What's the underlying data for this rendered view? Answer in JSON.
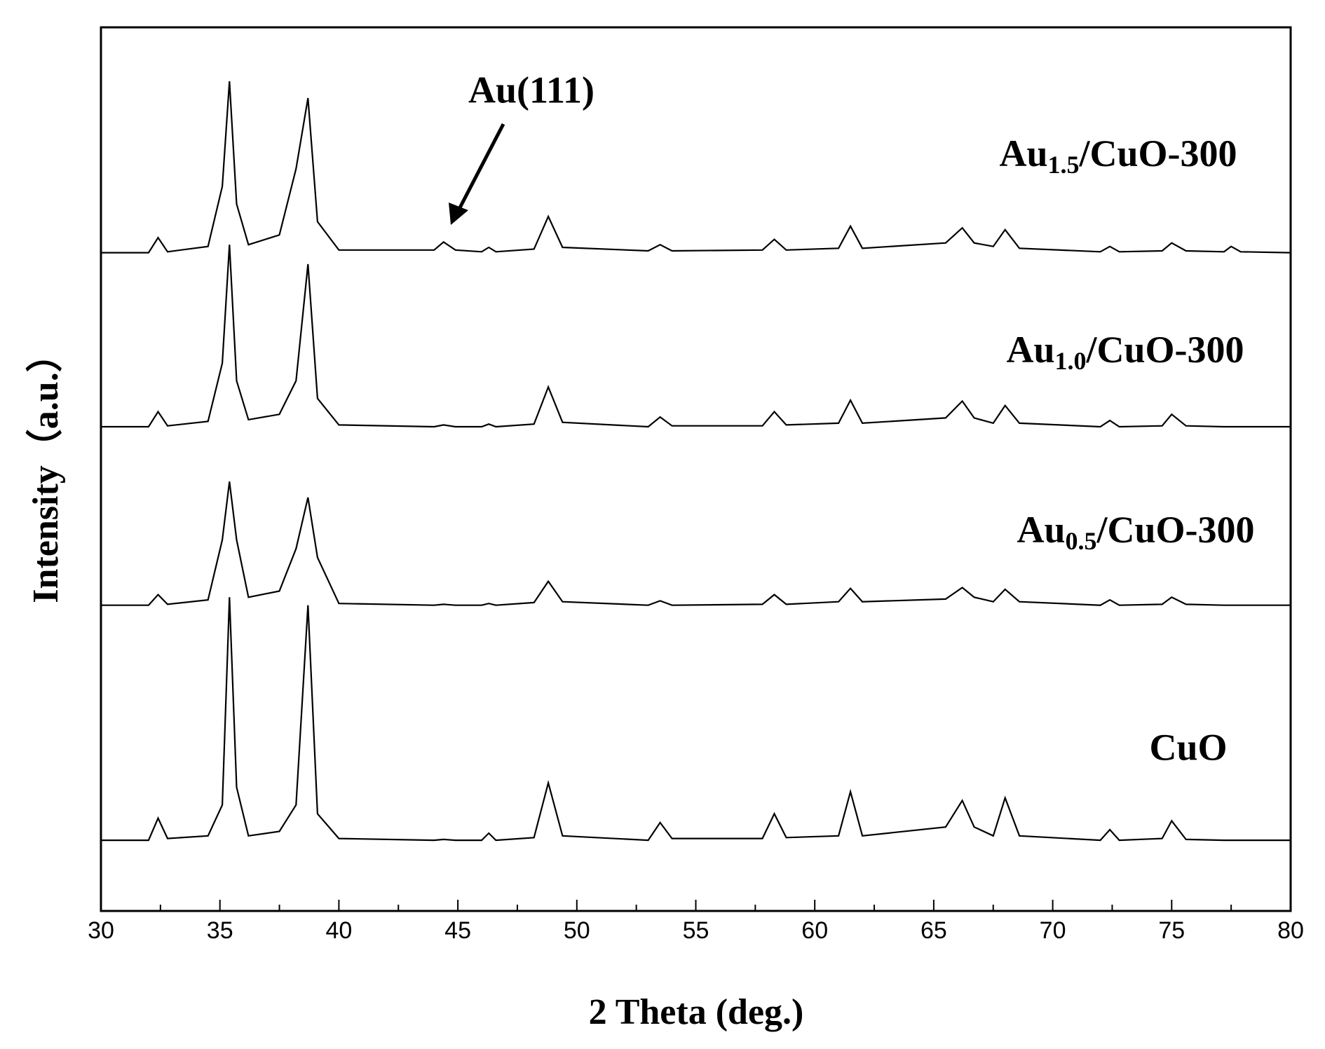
{
  "chart_data": {
    "type": "line",
    "x_label": "2 Theta (deg.)",
    "y_label": "Intensity（a.u.）",
    "annotation": "Au(111)",
    "xlim": [
      30,
      80
    ],
    "xticks": [
      30,
      35,
      40,
      45,
      50,
      55,
      60,
      65,
      70,
      75,
      80
    ],
    "ylim": [
      0,
      100
    ],
    "x": [
      30,
      32.0,
      32.4,
      32.8,
      34.5,
      35.1,
      35.4,
      35.7,
      36.2,
      37.5,
      38.2,
      38.7,
      39.1,
      40,
      44.0,
      44.4,
      44.9,
      46.0,
      46.3,
      46.6,
      48.2,
      48.8,
      49.4,
      53.0,
      53.5,
      54.0,
      57.8,
      58.3,
      58.8,
      61.0,
      61.5,
      62.0,
      65.5,
      66.2,
      66.7,
      67.5,
      68.0,
      68.6,
      72.0,
      72.4,
      72.8,
      74.6,
      75.0,
      75.6,
      77.2,
      77.5,
      77.9,
      80
    ],
    "series": [
      {
        "name": "CuO",
        "color": "#000000",
        "values": [
          8,
          8,
          10.5,
          8.2,
          8.5,
          12,
          35.5,
          14,
          8.5,
          9,
          12,
          34.6,
          11,
          8.2,
          8,
          8.1,
          8,
          8,
          8.8,
          8,
          8.3,
          14.5,
          8.5,
          8,
          10,
          8.2,
          8.2,
          11,
          8.3,
          8.5,
          13.5,
          8.5,
          9.5,
          12.5,
          9.5,
          8.5,
          12.8,
          8.5,
          8,
          9.2,
          8,
          8.2,
          10.2,
          8.1,
          8,
          8,
          8,
          8
        ]
      },
      {
        "name": "Au0.5/CuO-300",
        "color": "#000000",
        "values": [
          34.6,
          34.6,
          35.8,
          34.7,
          35.2,
          42,
          48.6,
          42,
          35.5,
          36.2,
          41,
          46.8,
          40,
          34.8,
          34.6,
          34.7,
          34.6,
          34.6,
          34.8,
          34.6,
          34.9,
          37.3,
          35,
          34.6,
          35.1,
          34.6,
          34.7,
          35.8,
          34.7,
          35,
          36.5,
          35,
          35.3,
          36.6,
          35.5,
          35,
          36.4,
          35,
          34.6,
          35.2,
          34.6,
          34.7,
          35.5,
          34.7,
          34.6,
          34.6,
          34.6,
          34.6
        ]
      },
      {
        "name": "Au1.0/CuO-300",
        "color": "#000000",
        "values": [
          54.8,
          54.8,
          56.5,
          54.9,
          55.4,
          62,
          75.4,
          60,
          55.6,
          56.2,
          60,
          73.2,
          58,
          55,
          54.8,
          55,
          54.8,
          54.8,
          55.1,
          54.8,
          55.1,
          59.3,
          55.3,
          54.8,
          55.9,
          54.9,
          54.9,
          56.5,
          55,
          55.2,
          57.8,
          55.2,
          55.8,
          57.7,
          55.8,
          55.2,
          57.2,
          55.2,
          54.8,
          55.5,
          54.8,
          54.9,
          56.2,
          54.9,
          54.8,
          54.8,
          54.8,
          54.8
        ]
      },
      {
        "name": "Au1.5/CuO-300",
        "color": "#000000",
        "values": [
          74.5,
          74.5,
          76.2,
          74.6,
          75.2,
          82,
          93.9,
          80,
          75.4,
          76.5,
          84,
          92.0,
          78,
          74.8,
          74.8,
          75.7,
          74.8,
          74.6,
          75.1,
          74.6,
          74.9,
          78.6,
          75.1,
          74.7,
          75.4,
          74.7,
          74.8,
          76,
          74.8,
          75,
          77.5,
          75,
          75.6,
          77.3,
          75.6,
          75.2,
          77.1,
          75,
          74.6,
          75.2,
          74.6,
          74.7,
          75.6,
          74.7,
          74.6,
          75.2,
          74.6,
          74.5
        ]
      }
    ]
  }
}
